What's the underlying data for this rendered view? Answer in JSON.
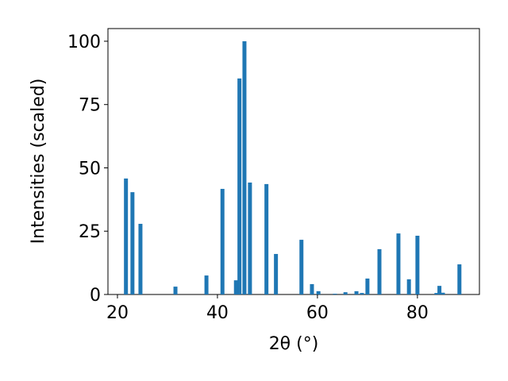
{
  "chart_data": {
    "type": "bar",
    "xlabel": "2θ (°)",
    "ylabel": "Intensities (scaled)",
    "color": "#1f77b4",
    "x": [
      21.7,
      23.0,
      24.6,
      31.6,
      37.8,
      41.0,
      43.7,
      44.4,
      45.4,
      46.5,
      49.8,
      51.7,
      56.8,
      58.9,
      60.2,
      63.5,
      65.6,
      67.8,
      68.9,
      70.0,
      72.4,
      76.2,
      78.3,
      80.0,
      83.8,
      84.4,
      85.1,
      88.4
    ],
    "values": [
      45.8,
      40.4,
      27.9,
      3.1,
      7.5,
      41.7,
      5.6,
      85.3,
      100,
      44.2,
      43.6,
      16.0,
      21.6,
      4.1,
      1.3,
      0.3,
      0.9,
      1.3,
      0.6,
      6.3,
      17.9,
      24.1,
      6.0,
      23.2,
      0.6,
      3.4,
      0.7,
      11.9
    ],
    "xlim": [
      18.1,
      92.4
    ],
    "ylim": [
      0,
      105
    ],
    "xticks": [
      20,
      40,
      60,
      80
    ],
    "yticks": [
      0,
      25,
      50,
      75,
      100
    ]
  }
}
